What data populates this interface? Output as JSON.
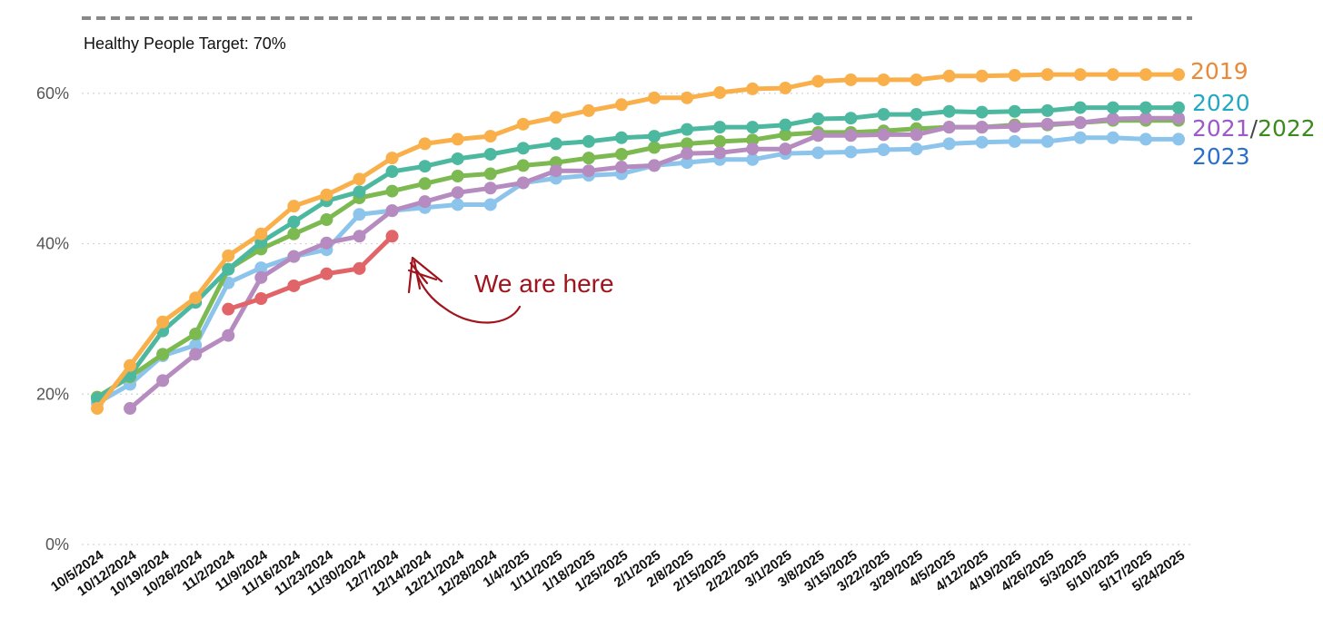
{
  "chart_data": {
    "type": "line",
    "annotations": {
      "target_label": "Healthy People Target: 70%",
      "pointer": "We are here"
    },
    "target": 70,
    "legend_separator": "/",
    "categories": [
      "10/5/2024",
      "10/12/2024",
      "10/19/2024",
      "10/26/2024",
      "11/2/2024",
      "11/9/2024",
      "11/16/2024",
      "11/23/2024",
      "11/30/2024",
      "12/7/2024",
      "12/14/2024",
      "12/21/2024",
      "12/28/2024",
      "1/4/2025",
      "1/11/2025",
      "1/18/2025",
      "1/25/2025",
      "2/1/2025",
      "2/8/2025",
      "2/15/2025",
      "2/22/2025",
      "3/1/2025",
      "3/8/2025",
      "3/15/2025",
      "3/22/2025",
      "3/29/2025",
      "4/5/2025",
      "4/12/2025",
      "4/19/2025",
      "4/26/2025",
      "5/3/2025",
      "5/10/2025",
      "5/17/2025",
      "5/24/2025"
    ],
    "ylim": [
      0,
      70
    ],
    "yticks": [
      {
        "value": 0,
        "label": "0%"
      },
      {
        "value": 20,
        "label": "20%"
      },
      {
        "value": 40,
        "label": "40%"
      },
      {
        "value": 60,
        "label": "60%"
      }
    ],
    "grid": true,
    "series": [
      {
        "name": "2023",
        "color": "#8cc4ec",
        "label_color": "#2a6fc9",
        "values": [
          18.8,
          21.3,
          25.1,
          26.5,
          34.8,
          36.8,
          38.3,
          39.2,
          43.9,
          44.4,
          44.8,
          45.2,
          45.2,
          48.1,
          48.7,
          49.1,
          49.3,
          50.4,
          50.8,
          51.2,
          51.2,
          52.0,
          52.1,
          52.2,
          52.5,
          52.6,
          53.3,
          53.5,
          53.6,
          53.6,
          54.1,
          54.1,
          53.9,
          53.9
        ]
      },
      {
        "name": "2022",
        "color": "#7cb950",
        "label_color": "#3a8a1e",
        "values": [
          19.6,
          22.3,
          25.3,
          28.0,
          36.6,
          39.3,
          41.3,
          43.2,
          46.1,
          47.0,
          48.0,
          49.0,
          49.3,
          50.4,
          50.8,
          51.4,
          51.9,
          52.8,
          53.3,
          53.6,
          53.8,
          54.5,
          54.8,
          54.8,
          55.0,
          55.3,
          55.5,
          55.5,
          55.8,
          55.8,
          56.1,
          56.4,
          56.4,
          56.4
        ]
      },
      {
        "name": "2021",
        "color": "#b68bbf",
        "label_color": "#9b59c9",
        "values": [
          null,
          18.1,
          21.8,
          25.3,
          27.8,
          35.5,
          38.3,
          40.1,
          41.0,
          44.4,
          45.6,
          46.8,
          47.4,
          48.1,
          49.7,
          49.7,
          50.2,
          50.4,
          52.0,
          52.1,
          52.6,
          52.6,
          54.4,
          54.4,
          54.5,
          54.5,
          55.5,
          55.5,
          55.6,
          55.9,
          56.1,
          56.6,
          56.7,
          56.7
        ]
      },
      {
        "name": "2020",
        "color": "#4cb8a0",
        "label_color": "#22a8c0",
        "values": [
          19.4,
          22.5,
          28.4,
          32.2,
          36.6,
          40.2,
          42.9,
          45.7,
          46.9,
          49.6,
          50.3,
          51.3,
          51.9,
          52.7,
          53.3,
          53.6,
          54.1,
          54.3,
          55.2,
          55.5,
          55.5,
          55.8,
          56.6,
          56.7,
          57.2,
          57.2,
          57.6,
          57.5,
          57.6,
          57.7,
          58.1,
          58.1,
          58.1,
          58.1
        ]
      },
      {
        "name": "2019",
        "color": "#f9b04b",
        "label_color": "#e88a3a",
        "values": [
          18.1,
          23.8,
          29.6,
          32.8,
          38.4,
          41.3,
          45.0,
          46.5,
          48.6,
          51.4,
          53.3,
          53.9,
          54.3,
          55.9,
          56.8,
          57.7,
          58.5,
          59.4,
          59.4,
          60.1,
          60.6,
          60.7,
          61.6,
          61.8,
          61.8,
          61.8,
          62.3,
          62.3,
          62.4,
          62.5,
          62.5,
          62.5,
          62.5,
          62.5
        ]
      },
      {
        "color": "#e06468",
        "values": [
          null,
          null,
          null,
          null,
          31.3,
          32.7,
          34.4,
          36.0,
          36.7,
          41.0,
          null,
          null,
          null,
          null,
          null,
          null,
          null,
          null,
          null,
          null,
          null,
          null,
          null,
          null,
          null,
          null,
          null,
          null,
          null,
          null,
          null,
          null,
          null,
          null
        ]
      }
    ]
  }
}
